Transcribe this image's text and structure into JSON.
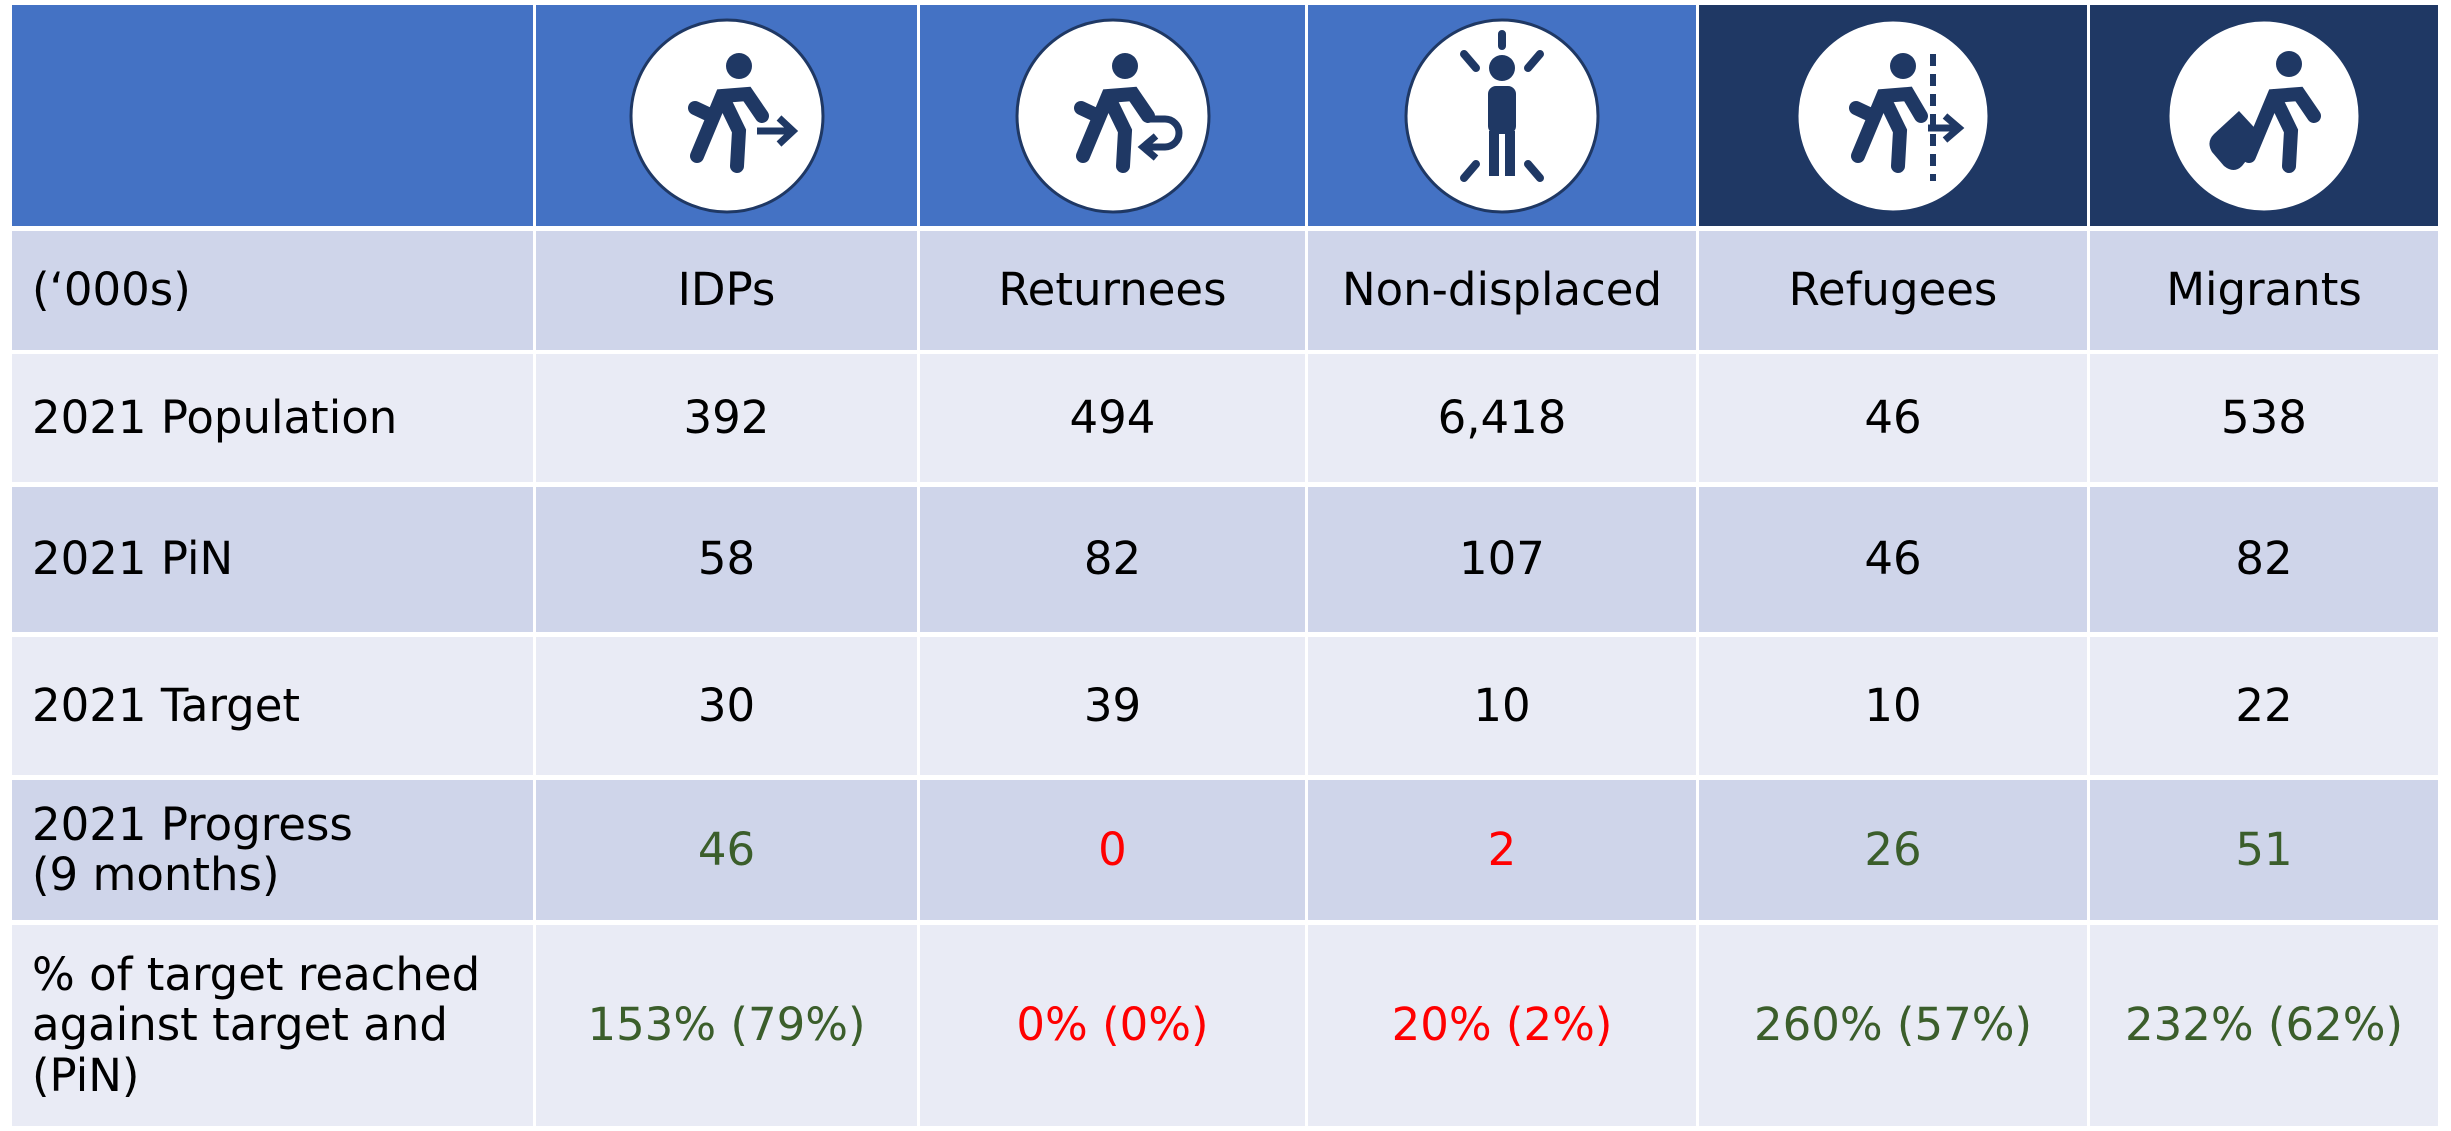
{
  "table": {
    "header": [
      "(‘000s)",
      "IDPs",
      "Returnees",
      "Non-displaced",
      "Refugees",
      "Migrants"
    ],
    "rows": [
      [
        "2021 Population",
        "392",
        "494",
        "6,418",
        "46",
        "538"
      ],
      [
        "2021 PiN",
        "58",
        "82",
        "107",
        "46",
        "82"
      ],
      [
        "2021 Target",
        "30",
        "39",
        "10",
        "10",
        "22"
      ],
      [
        "2021 Progress\n(9 months)",
        "46",
        "0",
        "2",
        "26",
        "51"
      ],
      [
        "% of target reached\nagainst target and\n(PiN)",
        "153% (79%)",
        "0% (0%)",
        "20% (2%)",
        "260% (57%)",
        "232% (62%)"
      ]
    ]
  }
}
